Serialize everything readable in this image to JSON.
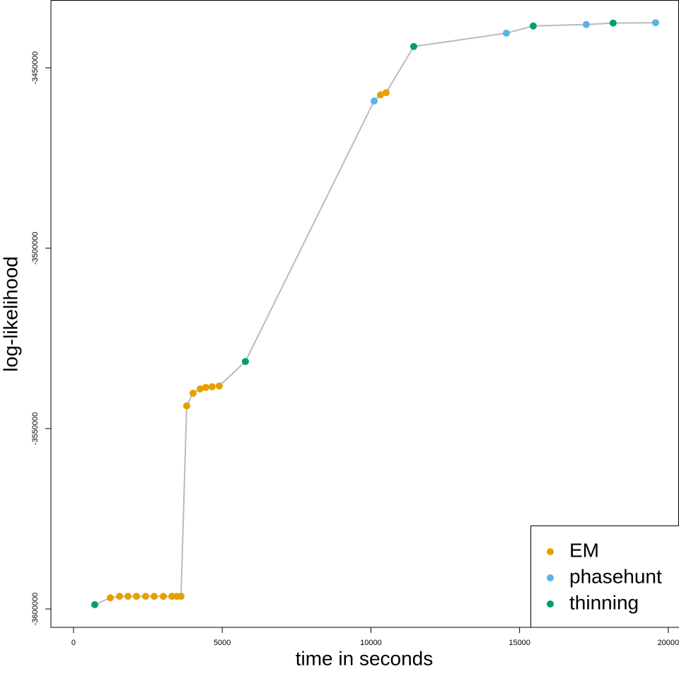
{
  "chart_data": {
    "type": "line",
    "xlabel": "time in seconds",
    "ylabel": "log-likelihood",
    "x": [
      713,
      1237,
      1546,
      1831,
      2117,
      2426,
      2711,
      3020,
      3306,
      3472,
      3615,
      3805,
      4019,
      4257,
      4447,
      4661,
      4899,
      5779,
      10107,
      10321,
      10511,
      11439,
      14554,
      15458,
      17241,
      18145,
      19572
    ],
    "values": [
      -3598800,
      -3596900,
      -3596500,
      -3596500,
      -3596500,
      -3596500,
      -3596500,
      -3596500,
      -3596500,
      -3596500,
      -3596500,
      -3543700,
      -3540200,
      -3539000,
      -3538600,
      -3538400,
      -3538200,
      -3531400,
      -3459200,
      -3457500,
      -3456900,
      -3444100,
      -3440400,
      -3438400,
      -3438000,
      -3437600,
      -3437500
    ],
    "method": [
      "thinning",
      "EM",
      "EM",
      "EM",
      "EM",
      "EM",
      "EM",
      "EM",
      "EM",
      "EM",
      "EM",
      "EM",
      "EM",
      "EM",
      "EM",
      "EM",
      "EM",
      "thinning",
      "phasehunt",
      "EM",
      "EM",
      "thinning",
      "phasehunt",
      "thinning",
      "phasehunt",
      "thinning",
      "phasehunt"
    ],
    "series": [
      {
        "name": "EM",
        "color": "#E69F00"
      },
      {
        "name": "phasehunt",
        "color": "#56B4E9"
      },
      {
        "name": "thinning",
        "color": "#009E73"
      }
    ],
    "line_color": "#bbbbbb",
    "xlim": [
      -760,
      20360
    ],
    "xticks": [
      0,
      5000,
      10000,
      15000,
      20000
    ],
    "ylim": [
      -3605100,
      -3431200
    ],
    "yticks": [
      -3600000,
      -3550000,
      -3500000,
      -3450000
    ],
    "legend": "bottomright"
  }
}
